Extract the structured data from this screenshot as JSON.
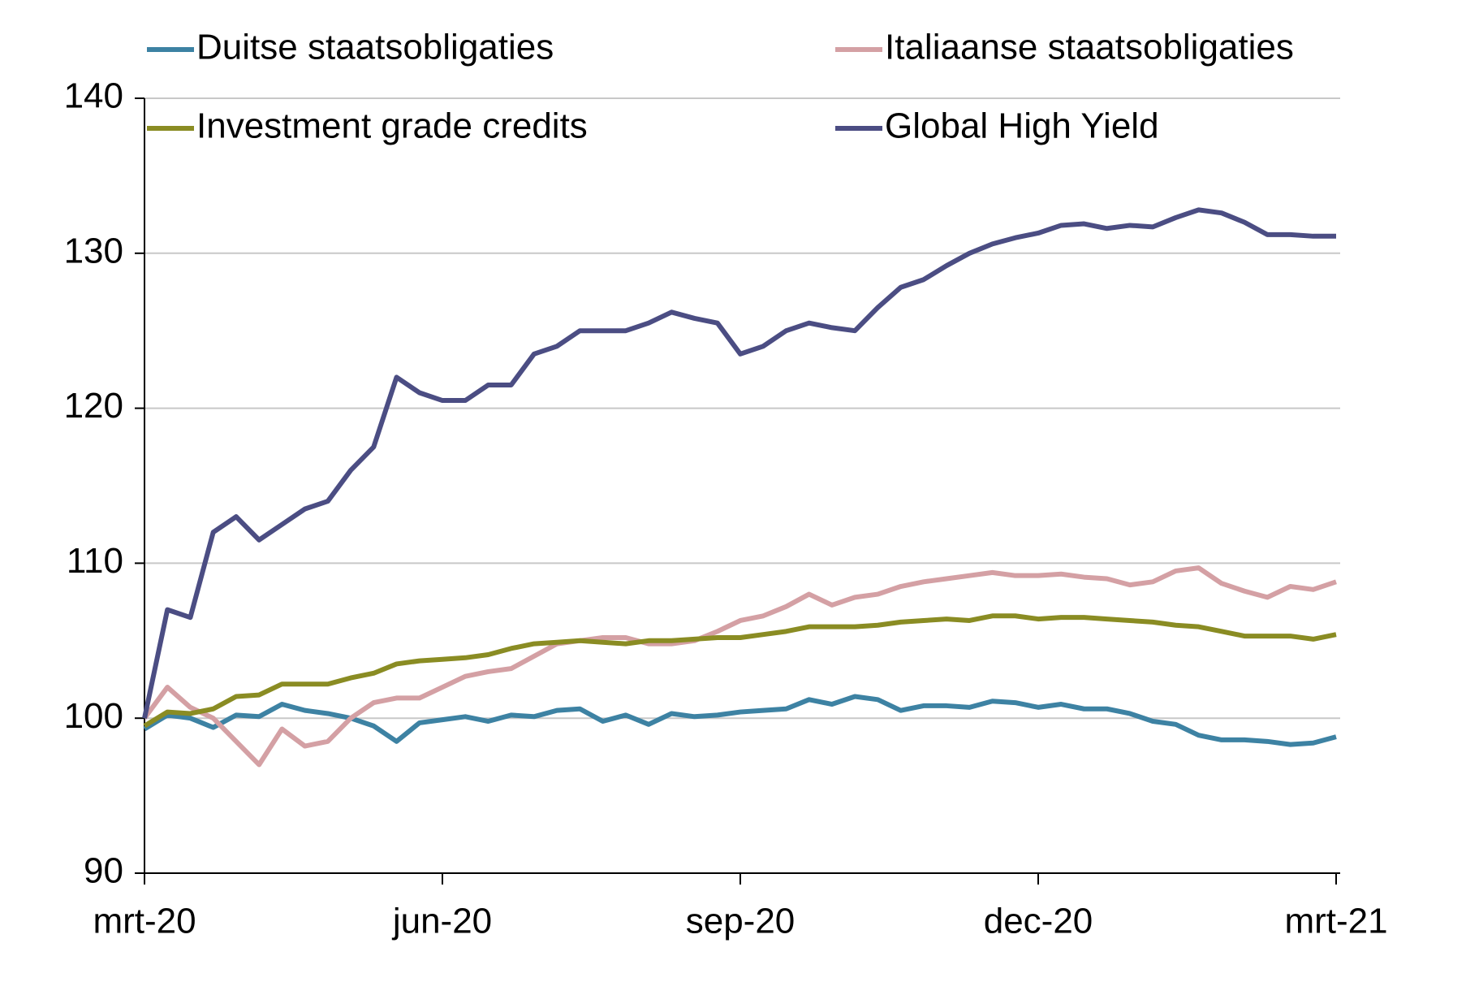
{
  "chart_data": {
    "type": "line",
    "categories": [
      "mrt-20",
      null,
      null,
      null,
      null,
      null,
      null,
      null,
      null,
      null,
      null,
      null,
      null,
      "jun-20",
      null,
      null,
      null,
      null,
      null,
      null,
      null,
      null,
      null,
      null,
      null,
      null,
      "sep-20",
      null,
      null,
      null,
      null,
      null,
      null,
      null,
      null,
      null,
      null,
      null,
      null,
      "dec-20",
      null,
      null,
      null,
      null,
      null,
      null,
      null,
      null,
      null,
      null,
      null,
      null,
      "mrt-21"
    ],
    "series": [
      {
        "name": "Duitse staatsobligaties",
        "color": "#3d82a3",
        "values": [
          99.3,
          100.2,
          100,
          99.4,
          100.2,
          100.1,
          100.9,
          100.5,
          100.3,
          100,
          99.5,
          98.5,
          99.7,
          99.9,
          100.1,
          99.8,
          100.2,
          100.1,
          100.5,
          100.6,
          99.8,
          100.2,
          99.6,
          100.3,
          100.1,
          100.2,
          100.4,
          100.5,
          100.6,
          101.2,
          100.9,
          101.4,
          101.2,
          100.5,
          100.8,
          100.8,
          100.7,
          101.1,
          101,
          100.7,
          100.9,
          100.6,
          100.6,
          100.3,
          99.8,
          99.6,
          98.9,
          98.6,
          98.6,
          98.5,
          98.3,
          98.4,
          98.8
        ]
      },
      {
        "name": "Italiaanse staatsobligaties",
        "color": "#d4a0a4",
        "values": [
          100,
          102,
          100.7,
          100,
          98.5,
          97,
          99.3,
          98.2,
          98.5,
          100,
          101,
          101.3,
          101.3,
          102,
          102.7,
          103,
          103.2,
          104,
          104.8,
          105,
          105.2,
          105.2,
          104.8,
          104.8,
          105,
          105.6,
          106.3,
          106.6,
          107.2,
          108,
          107.3,
          107.8,
          108,
          108.5,
          108.8,
          109,
          109.2,
          109.4,
          109.2,
          109.2,
          109.3,
          109.1,
          109,
          108.6,
          108.8,
          109.5,
          109.7,
          108.7,
          108.2,
          107.8,
          108.5,
          108.3,
          108.8
        ]
      },
      {
        "name": "Investment grade credits",
        "color": "#8a8c23",
        "values": [
          99.5,
          100.4,
          100.3,
          100.6,
          101.4,
          101.5,
          102.2,
          102.2,
          102.2,
          102.6,
          102.9,
          103.5,
          103.7,
          103.8,
          103.9,
          104.1,
          104.5,
          104.8,
          104.9,
          105,
          104.9,
          104.8,
          105,
          105,
          105.1,
          105.2,
          105.2,
          105.4,
          105.6,
          105.9,
          105.9,
          105.9,
          106,
          106.2,
          106.3,
          106.4,
          106.3,
          106.6,
          106.6,
          106.4,
          106.5,
          106.5,
          106.4,
          106.3,
          106.2,
          106,
          105.9,
          105.6,
          105.3,
          105.3,
          105.3,
          105.1,
          105.4
        ]
      },
      {
        "name": "Global High Yield",
        "color": "#4b4d83",
        "values": [
          100,
          107,
          106.5,
          112,
          113,
          111.5,
          112.5,
          113.5,
          114,
          116,
          117.5,
          122,
          121,
          120.5,
          120.5,
          121.5,
          121.5,
          123.5,
          124,
          125,
          125,
          125,
          125.5,
          126.2,
          125.8,
          125.5,
          123.5,
          124,
          125,
          125.5,
          125.2,
          125,
          126.5,
          127.8,
          128.3,
          129.2,
          130,
          130.6,
          131,
          131.3,
          131.8,
          131.9,
          131.6,
          131.8,
          131.7,
          132.3,
          132.8,
          132.6,
          132,
          131.2,
          131.2,
          131.1,
          131.1
        ]
      }
    ],
    "ylim": [
      90,
      140
    ],
    "yticks": [
      90,
      100,
      110,
      120,
      130,
      140
    ],
    "grid": true,
    "legend": "top"
  }
}
